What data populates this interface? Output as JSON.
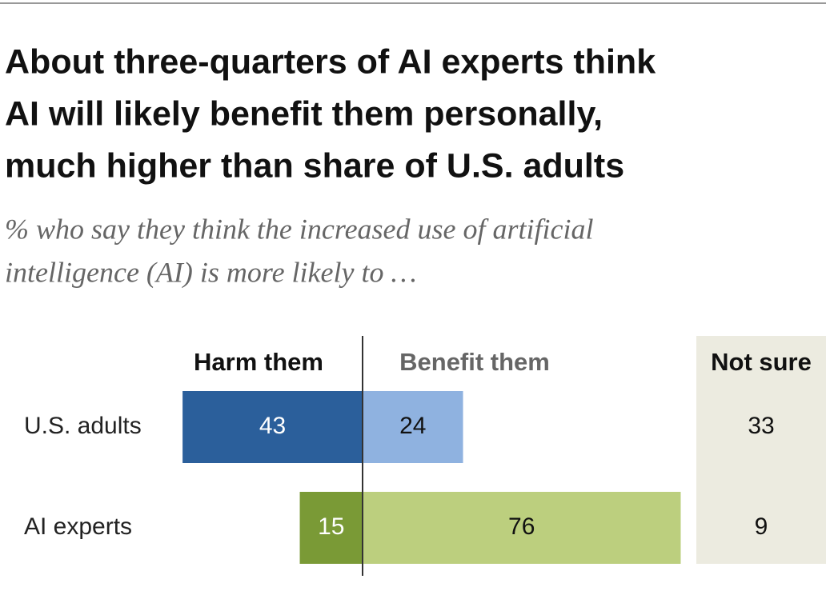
{
  "chart_data": {
    "type": "diverging_bar",
    "title_lines": [
      "About three-quarters of AI experts think",
      "AI will likely benefit them personally,",
      "much higher than share of U.S. adults"
    ],
    "subtitle_lines": [
      "% who say they think the increased use of artificial",
      "intelligence (AI) is more likely to …"
    ],
    "categories": [
      "U.S. adults",
      "AI experts"
    ],
    "series": [
      {
        "name": "Harm them",
        "colors": [
          "#2b5f9b",
          "#7a9a36"
        ],
        "values": [
          43,
          15
        ]
      },
      {
        "name": "Benefit them",
        "colors": [
          "#8fb2e0",
          "#bccf7e"
        ],
        "values": [
          24,
          76
        ]
      },
      {
        "name": "Not sure",
        "values": [
          33,
          9
        ]
      }
    ]
  }
}
